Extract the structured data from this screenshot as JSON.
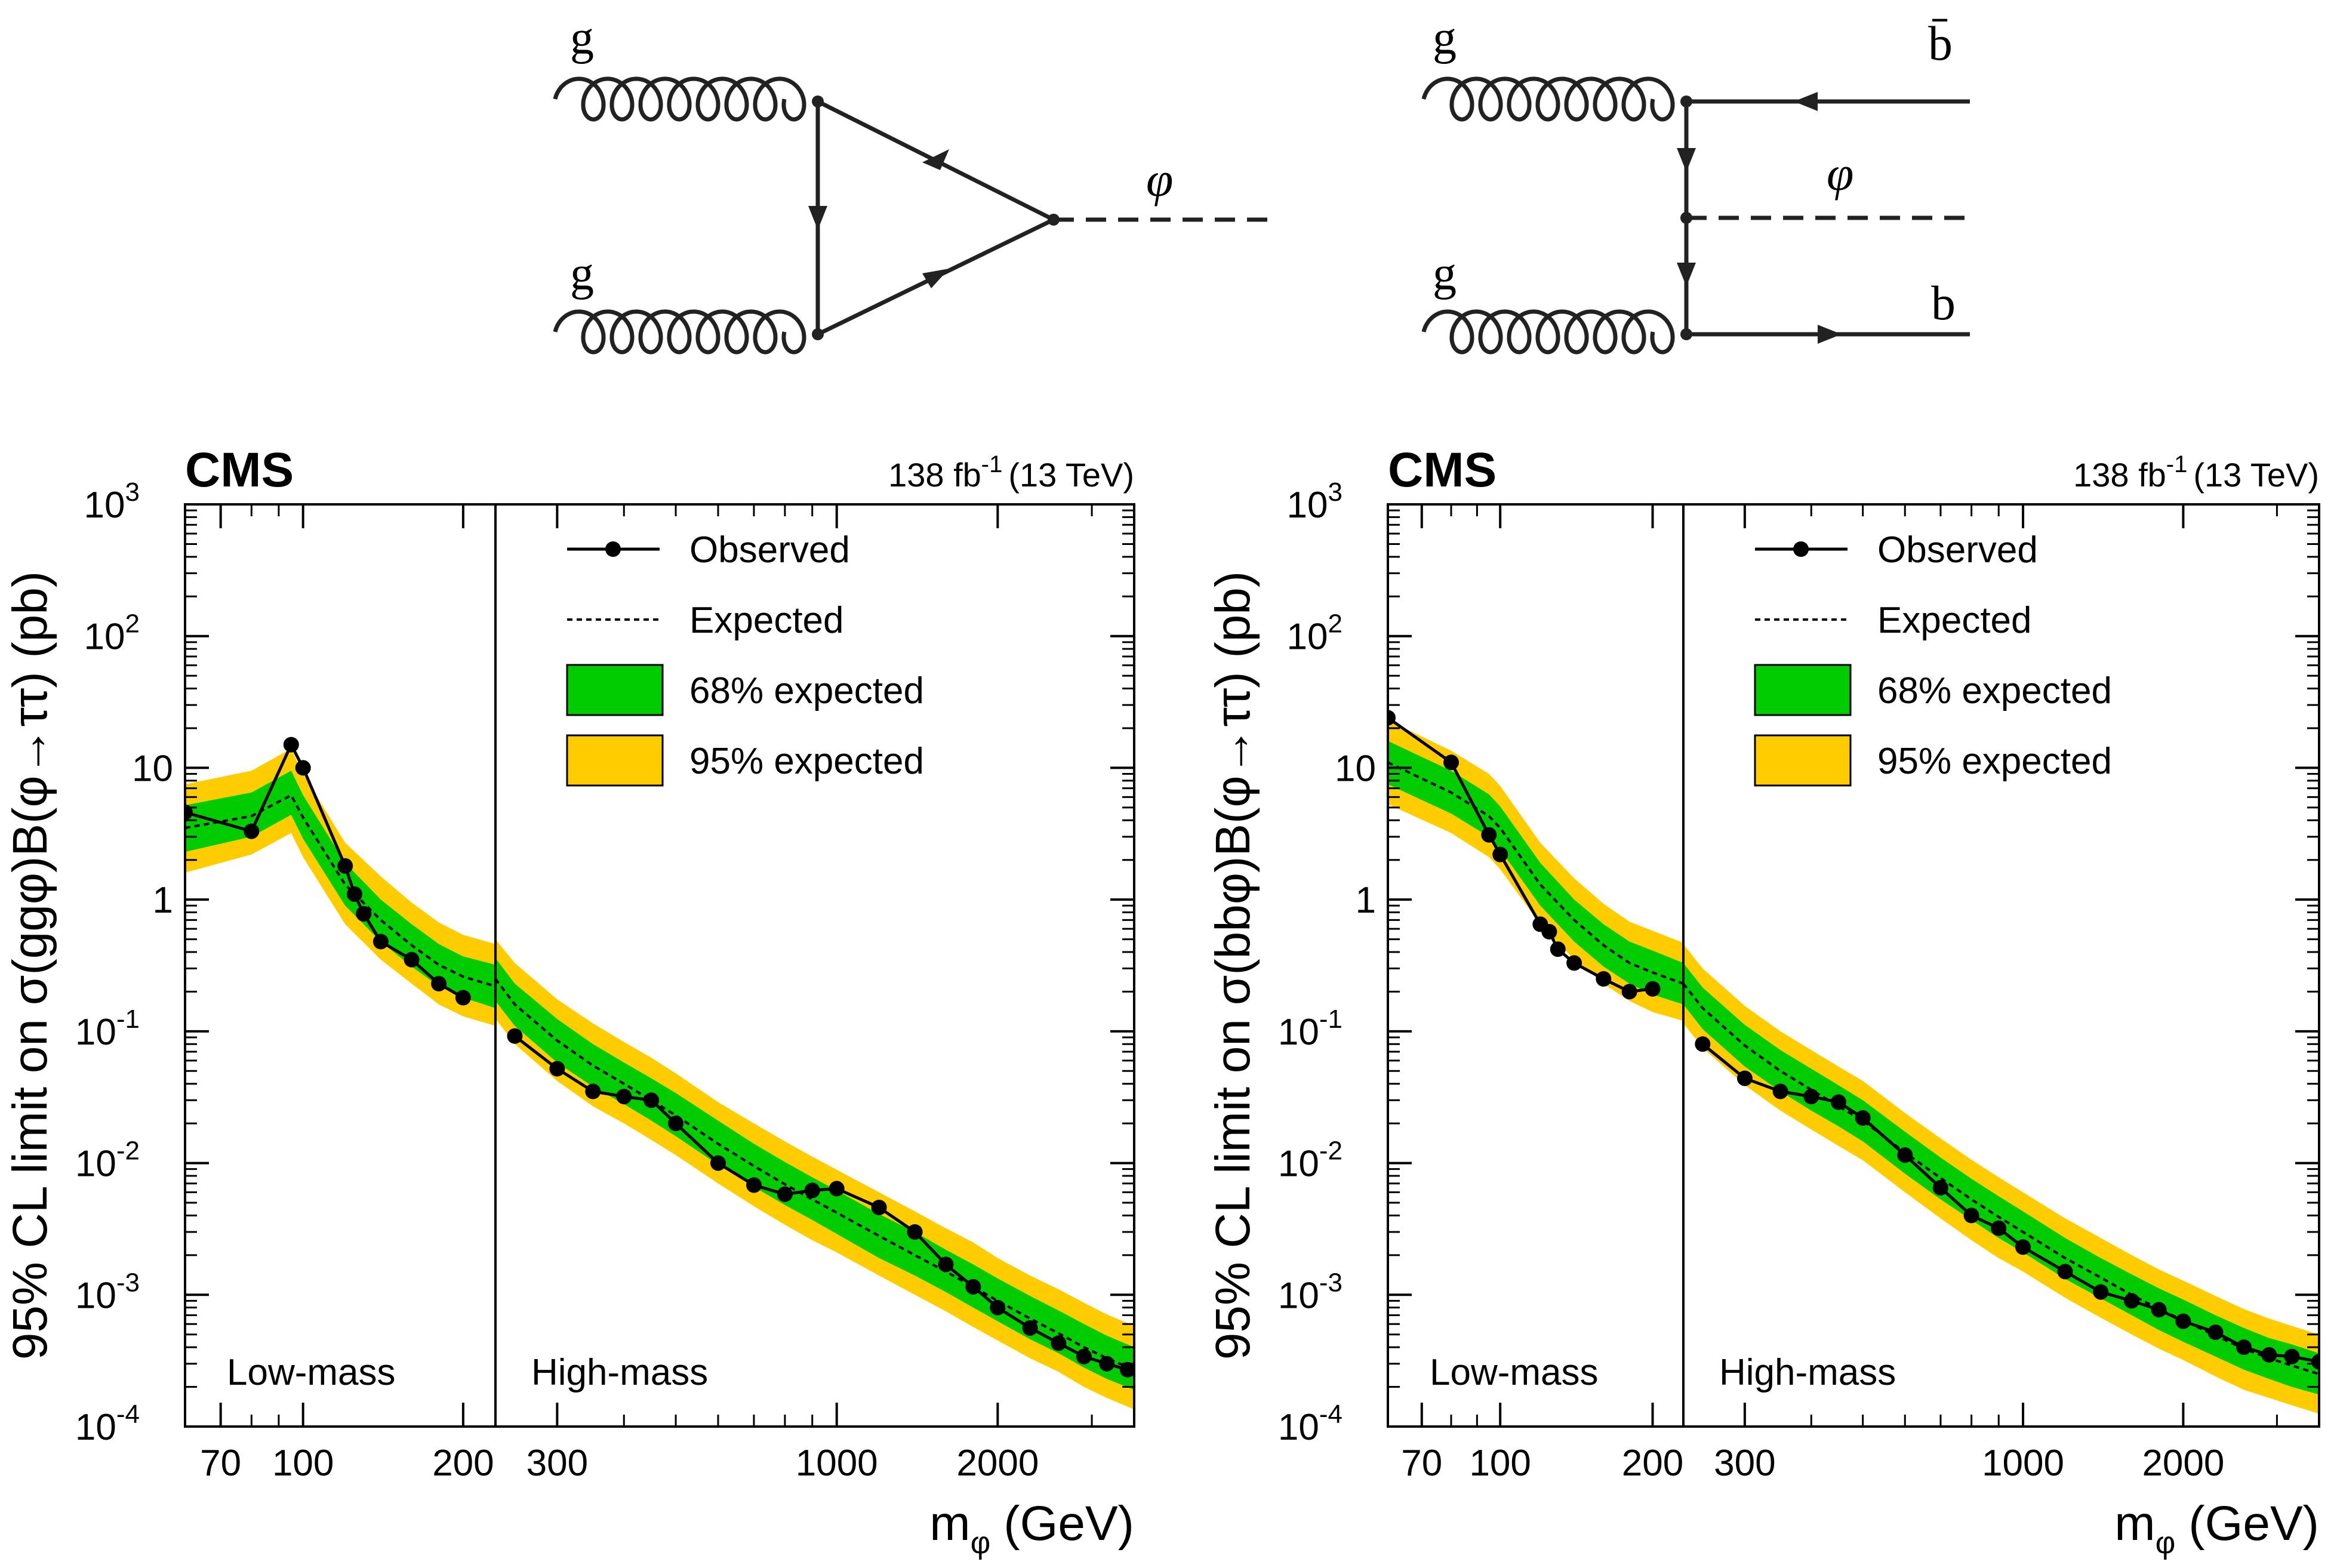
{
  "colors": {
    "band68": "#00CC00",
    "band95": "#FFCC00",
    "line": "#000000",
    "background": "#FFFFFF"
  },
  "diagrams": {
    "left": {
      "gluon_top": "g",
      "gluon_bottom": "g",
      "boson": "φ"
    },
    "right": {
      "gluon_top": "g",
      "gluon_bottom": "g",
      "boson": "φ",
      "quark_top": "b̄",
      "quark_bottom": "b"
    }
  },
  "chart_data": [
    {
      "type": "line",
      "experiment": "CMS",
      "lumi_label": "138 fb",
      "lumi_exp": "-1",
      "energy_label": "(13 TeV)",
      "ylabel": "95% CL limit on σ(ggφ)B(φ→ττ) (pb)",
      "xlabel": "m",
      "xlabel_sub": "φ",
      "xlabel_unit": "(GeV)",
      "yscale": "log",
      "ylim": [
        0.0001,
        1000
      ],
      "xscale": "piecewise-log",
      "regions": [
        {
          "label": "Low-mass",
          "xlim": [
            60,
            230
          ],
          "ticks": [
            "70",
            "100",
            "200"
          ],
          "tick_values": [
            70,
            100,
            200
          ]
        },
        {
          "label": "High-mass",
          "xlim": [
            230,
            3600
          ],
          "ticks": [
            "300",
            "1000",
            "2000"
          ],
          "tick_values": [
            300,
            1000,
            2000
          ]
        }
      ],
      "y_ticks": [
        {
          "value": 0.0001,
          "base": "10",
          "exp": "-4"
        },
        {
          "value": 0.001,
          "base": "10",
          "exp": "-3"
        },
        {
          "value": 0.01,
          "base": "10",
          "exp": "-2"
        },
        {
          "value": 0.1,
          "base": "10",
          "exp": "-1"
        },
        {
          "value": 1,
          "base": "1",
          "exp": ""
        },
        {
          "value": 10,
          "base": "10",
          "exp": ""
        },
        {
          "value": 100,
          "base": "10",
          "exp": "2"
        },
        {
          "value": 1000,
          "base": "10",
          "exp": "3"
        }
      ],
      "legend": [
        "Observed",
        "Expected",
        "68% expected",
        "95% expected"
      ],
      "series_low": {
        "observed": {
          "x": [
            60,
            80,
            95,
            100,
            120,
            125,
            130,
            140,
            160,
            180,
            200
          ],
          "y": [
            4.6,
            3.3,
            15.0,
            10.0,
            1.8,
            1.1,
            0.78,
            0.48,
            0.35,
            0.23,
            0.18
          ]
        },
        "expected": {
          "x": [
            60,
            80,
            95,
            100,
            120,
            140,
            160,
            180,
            200,
            230
          ],
          "y": [
            3.5,
            4.3,
            6.2,
            4.2,
            1.3,
            0.7,
            0.45,
            0.32,
            0.26,
            0.22
          ]
        },
        "band68_low": [
          2.3,
          3.0,
          4.4,
          2.9,
          0.9,
          0.48,
          0.31,
          0.22,
          0.18,
          0.15
        ],
        "band68_high": [
          5.2,
          6.5,
          9.5,
          6.2,
          1.9,
          1.0,
          0.65,
          0.46,
          0.37,
          0.32
        ],
        "band95_low": [
          1.6,
          2.2,
          3.2,
          2.1,
          0.65,
          0.35,
          0.23,
          0.16,
          0.13,
          0.11
        ],
        "band95_high": [
          7.5,
          9.5,
          14.0,
          9.0,
          2.7,
          1.5,
          0.95,
          0.67,
          0.54,
          0.46
        ]
      },
      "series_high": {
        "observed": {
          "x": [
            250,
            300,
            350,
            400,
            450,
            500,
            600,
            700,
            800,
            900,
            1000,
            1200,
            1400,
            1600,
            1800,
            2000,
            2300,
            2600,
            2900,
            3200,
            3500
          ],
          "y": [
            0.092,
            0.052,
            0.035,
            0.032,
            0.03,
            0.02,
            0.01,
            0.0068,
            0.0058,
            0.0062,
            0.0064,
            0.0046,
            0.003,
            0.0017,
            0.00115,
            0.0008,
            0.00056,
            0.00043,
            0.00034,
            0.0003,
            0.00027
          ]
        },
        "expected": {
          "x": [
            230,
            250,
            300,
            350,
            400,
            450,
            500,
            600,
            700,
            800,
            900,
            1000,
            1200,
            1400,
            1600,
            1800,
            2000,
            2300,
            2600,
            2900,
            3200,
            3600
          ],
          "y": [
            0.25,
            0.16,
            0.085,
            0.055,
            0.04,
            0.03,
            0.023,
            0.014,
            0.0095,
            0.0069,
            0.0053,
            0.0042,
            0.0028,
            0.002,
            0.0015,
            0.00115,
            0.0009,
            0.00066,
            0.00051,
            0.0004,
            0.00033,
            0.00027
          ]
        },
        "band68_low": [
          0.17,
          0.11,
          0.058,
          0.038,
          0.028,
          0.021,
          0.016,
          0.0097,
          0.0066,
          0.0048,
          0.0037,
          0.0029,
          0.0019,
          0.0014,
          0.00105,
          0.0008,
          0.00063,
          0.00046,
          0.00036,
          0.00028,
          0.00023,
          0.00019
        ],
        "band68_high": [
          0.36,
          0.23,
          0.124,
          0.08,
          0.058,
          0.044,
          0.034,
          0.021,
          0.014,
          0.0102,
          0.0078,
          0.0062,
          0.0041,
          0.003,
          0.0022,
          0.0017,
          0.00133,
          0.00098,
          0.00076,
          0.0006,
          0.00049,
          0.0004
        ],
        "band95_low": [
          0.125,
          0.08,
          0.042,
          0.027,
          0.02,
          0.015,
          0.0115,
          0.007,
          0.0047,
          0.0034,
          0.0026,
          0.0021,
          0.0014,
          0.001,
          0.00075,
          0.00057,
          0.00045,
          0.00033,
          0.00026,
          0.0002,
          0.000165,
          0.000135
        ],
        "band95_high": [
          0.5,
          0.33,
          0.175,
          0.115,
          0.083,
          0.063,
          0.048,
          0.029,
          0.02,
          0.0146,
          0.0112,
          0.0089,
          0.006,
          0.0043,
          0.0032,
          0.0025,
          0.0019,
          0.0014,
          0.0011,
          0.00087,
          0.00071,
          0.00058
        ]
      }
    },
    {
      "type": "line",
      "experiment": "CMS",
      "lumi_label": "138 fb",
      "lumi_exp": "-1",
      "energy_label": "(13 TeV)",
      "ylabel": "95% CL limit on σ(bbφ)B(φ→ττ) (pb)",
      "xlabel": "m",
      "xlabel_sub": "φ",
      "xlabel_unit": "(GeV)",
      "yscale": "log",
      "ylim": [
        0.0001,
        1000
      ],
      "xscale": "piecewise-log",
      "regions": [
        {
          "label": "Low-mass",
          "xlim": [
            60,
            230
          ],
          "ticks": [
            "70",
            "100",
            "200"
          ],
          "tick_values": [
            70,
            100,
            200
          ]
        },
        {
          "label": "High-mass",
          "xlim": [
            230,
            3600
          ],
          "ticks": [
            "300",
            "1000",
            "2000"
          ],
          "tick_values": [
            300,
            1000,
            2000
          ]
        }
      ],
      "y_ticks": [
        {
          "value": 0.0001,
          "base": "10",
          "exp": "-4"
        },
        {
          "value": 0.001,
          "base": "10",
          "exp": "-3"
        },
        {
          "value": 0.01,
          "base": "10",
          "exp": "-2"
        },
        {
          "value": 0.1,
          "base": "10",
          "exp": "-1"
        },
        {
          "value": 1,
          "base": "1",
          "exp": ""
        },
        {
          "value": 10,
          "base": "10",
          "exp": ""
        },
        {
          "value": 100,
          "base": "10",
          "exp": "2"
        },
        {
          "value": 1000,
          "base": "10",
          "exp": "3"
        }
      ],
      "legend": [
        "Observed",
        "Expected",
        "68% expected",
        "95% expected"
      ],
      "series_low": {
        "observed": {
          "x": [
            60,
            80,
            95,
            100,
            120,
            125,
            130,
            140,
            160,
            180,
            200
          ],
          "y": [
            24.0,
            11.0,
            3.1,
            2.2,
            0.65,
            0.57,
            0.42,
            0.33,
            0.25,
            0.2,
            0.21
          ]
        },
        "expected": {
          "x": [
            60,
            80,
            95,
            100,
            120,
            140,
            160,
            180,
            200,
            230
          ],
          "y": [
            11.0,
            6.5,
            4.3,
            3.5,
            1.3,
            0.7,
            0.45,
            0.33,
            0.28,
            0.23
          ]
        },
        "band68_low": [
          7.5,
          4.5,
          3.0,
          2.4,
          0.9,
          0.48,
          0.31,
          0.23,
          0.19,
          0.16
        ],
        "band68_high": [
          16.0,
          9.5,
          6.3,
          5.1,
          1.9,
          1.0,
          0.65,
          0.48,
          0.41,
          0.33
        ],
        "band95_low": [
          5.3,
          3.2,
          2.1,
          1.7,
          0.65,
          0.35,
          0.23,
          0.17,
          0.14,
          0.12
        ],
        "band95_high": [
          23.0,
          13.5,
          9.0,
          7.3,
          2.7,
          1.45,
          0.93,
          0.68,
          0.58,
          0.47
        ]
      },
      "series_high": {
        "observed": {
          "x": [
            250,
            300,
            350,
            400,
            450,
            500,
            600,
            700,
            800,
            900,
            1000,
            1200,
            1400,
            1600,
            1800,
            2000,
            2300,
            2600,
            2900,
            3200,
            3600
          ],
          "y": [
            0.08,
            0.044,
            0.035,
            0.032,
            0.029,
            0.022,
            0.0115,
            0.0065,
            0.004,
            0.0032,
            0.0023,
            0.0015,
            0.00105,
            0.0009,
            0.00077,
            0.00063,
            0.00052,
            0.0004,
            0.00035,
            0.00034,
            0.00031
          ]
        },
        "expected": {
          "x": [
            230,
            250,
            300,
            350,
            400,
            450,
            500,
            600,
            700,
            800,
            900,
            1000,
            1200,
            1400,
            1600,
            1800,
            2000,
            2300,
            2600,
            2900,
            3200,
            3600
          ],
          "y": [
            0.23,
            0.15,
            0.078,
            0.05,
            0.036,
            0.027,
            0.021,
            0.012,
            0.0077,
            0.0053,
            0.0039,
            0.003,
            0.0019,
            0.00135,
            0.001,
            0.00078,
            0.00064,
            0.00049,
            0.00039,
            0.00033,
            0.00029,
            0.00025
          ]
        },
        "band68_low": [
          0.16,
          0.104,
          0.054,
          0.035,
          0.025,
          0.019,
          0.0146,
          0.0083,
          0.0053,
          0.0037,
          0.0027,
          0.0021,
          0.00132,
          0.00094,
          0.0007,
          0.00054,
          0.00044,
          0.00034,
          0.00027,
          0.00023,
          0.0002,
          0.000175
        ],
        "band68_high": [
          0.33,
          0.215,
          0.112,
          0.072,
          0.052,
          0.039,
          0.03,
          0.0173,
          0.011,
          0.0076,
          0.0056,
          0.0043,
          0.0027,
          0.0019,
          0.00143,
          0.00112,
          0.00092,
          0.0007,
          0.00056,
          0.00047,
          0.00042,
          0.00036
        ],
        "band95_low": [
          0.115,
          0.075,
          0.039,
          0.025,
          0.018,
          0.0135,
          0.0105,
          0.006,
          0.0038,
          0.0026,
          0.0019,
          0.0015,
          0.00095,
          0.00067,
          0.0005,
          0.00039,
          0.00032,
          0.00024,
          0.00019,
          0.000165,
          0.000145,
          0.000125
        ],
        "band95_high": [
          0.46,
          0.3,
          0.156,
          0.1,
          0.072,
          0.054,
          0.042,
          0.024,
          0.0154,
          0.0106,
          0.0078,
          0.006,
          0.0038,
          0.0027,
          0.002,
          0.00156,
          0.00128,
          0.00098,
          0.00078,
          0.00066,
          0.00058,
          0.0005
        ]
      }
    }
  ]
}
